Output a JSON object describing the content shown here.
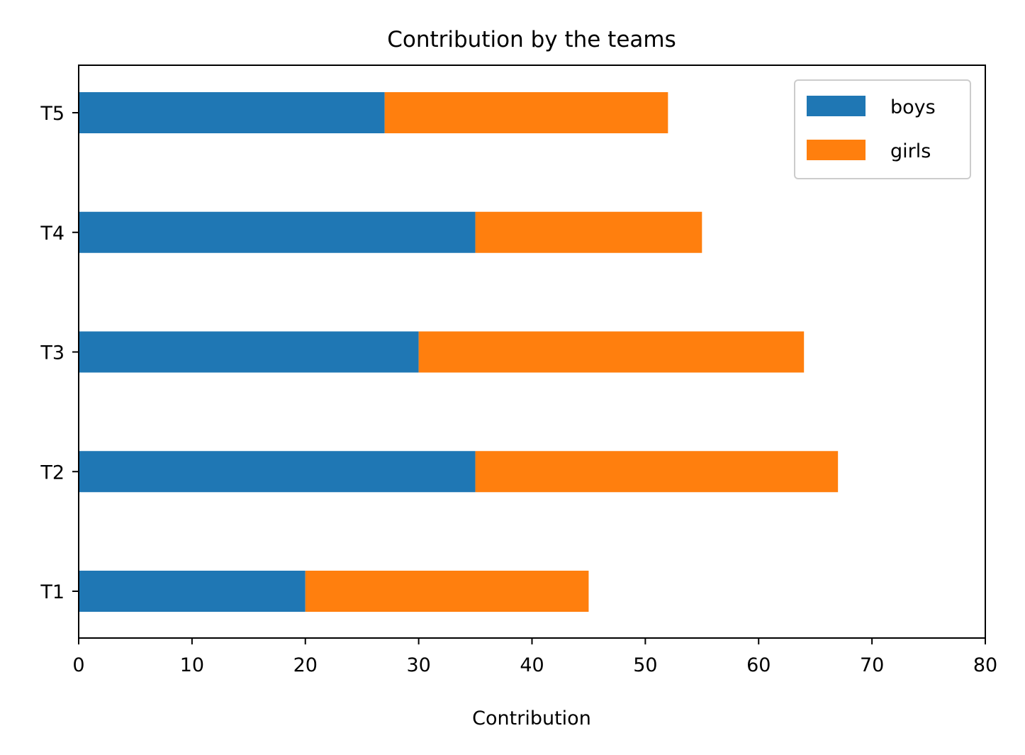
{
  "chart_data": {
    "type": "bar",
    "orientation": "horizontal",
    "stacked": true,
    "title": "Contribution by the teams",
    "xlabel": "Contribution",
    "ylabel": "",
    "xlim": [
      0,
      80
    ],
    "xticks": [
      0,
      10,
      20,
      30,
      40,
      50,
      60,
      70,
      80
    ],
    "categories": [
      "T1",
      "T2",
      "T3",
      "T4",
      "T5"
    ],
    "series": [
      {
        "name": "boys",
        "color": "#1f77b4",
        "values": [
          20,
          35,
          30,
          35,
          27
        ]
      },
      {
        "name": "girls",
        "color": "#ff7f0e",
        "values": [
          25,
          32,
          34,
          20,
          25
        ]
      }
    ],
    "grid": false,
    "legend": {
      "position": "top-right"
    }
  }
}
